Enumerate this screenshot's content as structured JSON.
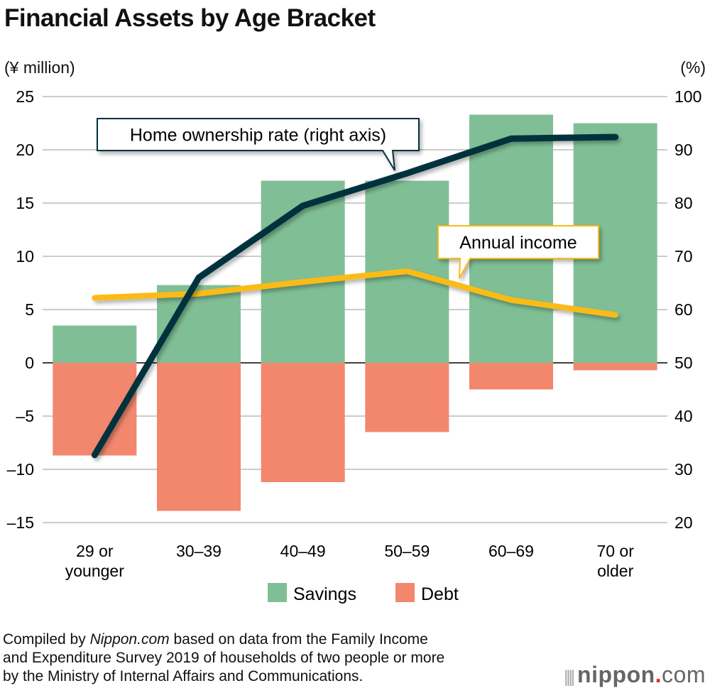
{
  "chart_data": {
    "type": "bar",
    "title": "Financial Assets by Age Bracket",
    "ylabel": "(¥ million)",
    "ylabel_right": "(%)",
    "ylim": [
      -15,
      25
    ],
    "ylim_right": [
      20,
      100
    ],
    "yticks": [
      25,
      20,
      15,
      10,
      5,
      0,
      -5,
      -10,
      -15
    ],
    "yticks_right": [
      100,
      90,
      80,
      70,
      60,
      50,
      40,
      30,
      20
    ],
    "categories": [
      "29 or younger",
      "30–39",
      "40–49",
      "50–59",
      "60–69",
      "70 or older"
    ],
    "category_lines": [
      [
        "29 or",
        "younger"
      ],
      [
        "30–39"
      ],
      [
        "40–49"
      ],
      [
        "50–59"
      ],
      [
        "60–69"
      ],
      [
        "70 or",
        "older"
      ]
    ],
    "grid": true,
    "series": [
      {
        "name": "Savings",
        "type": "bar",
        "color": "#80bf96",
        "values": [
          3.5,
          7.3,
          17.1,
          17.1,
          23.3,
          22.5
        ]
      },
      {
        "name": "Debt",
        "type": "bar",
        "color": "#f2876e",
        "values": [
          -8.7,
          -13.9,
          -11.2,
          -6.5,
          -2.5,
          -0.7
        ]
      },
      {
        "name": "Annual income",
        "type": "line",
        "axis": "left",
        "color": "#fbbb16",
        "values": [
          6.1,
          6.5,
          7.6,
          8.6,
          5.9,
          4.5
        ]
      },
      {
        "name": "Home ownership rate (right axis)",
        "type": "line",
        "axis": "right",
        "color": "#06313d",
        "values": [
          32.7,
          66.0,
          79.5,
          85.6,
          92.1,
          92.4
        ]
      }
    ],
    "annotations": [
      "Home ownership rate (right axis)",
      "Annual income"
    ],
    "legend": {
      "placement": "bottom",
      "items": [
        "Savings",
        "Debt"
      ]
    }
  },
  "footer": {
    "prefix": "Compiled by ",
    "source_name": "Nippon.com",
    "line1_rest": " based on data from the Family Income",
    "line2": "and Expenditure Survey 2019 of households of two people or more",
    "line3": "by the Ministry of Internal Affairs and Communications."
  },
  "logo": {
    "name": "nippon",
    "dot": ".",
    "suffix": "com"
  }
}
